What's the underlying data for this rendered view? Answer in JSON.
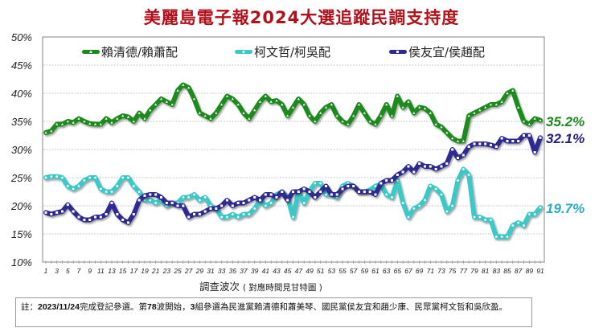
{
  "title": "美麗島電子報2024大選追蹤民調支持度",
  "legend": [
    {
      "label": "賴清德/賴蕭配",
      "color": "#1a8a1a",
      "marker": "triangle"
    },
    {
      "label": "柯文哲/柯吳配",
      "color": "#3cc8c8",
      "marker": "circle"
    },
    {
      "label": "侯友宜/侯趙配",
      "color": "#2e2a92",
      "marker": "square"
    }
  ],
  "x_axis_label": "調查波次",
  "x_axis_label_note": "( 對應時間見甘特圖 )",
  "note": {
    "prefix": "註：",
    "date": "2023/11/24",
    "text1": "完成登記參選。第",
    "wave": "78",
    "text2": "波開始，",
    "count": "3",
    "text3": "組參選為民進黨賴清德和蕭美琴、國民黨侯友宜和趙少康、民眾黨柯文哲和吳欣盈。"
  },
  "end_labels": [
    {
      "text": "35.2%",
      "color": "#1a8a1a"
    },
    {
      "text": "32.1%",
      "color": "#23207f"
    },
    {
      "text": "19.7%",
      "color": "#2aa9c9"
    }
  ],
  "chart_data": {
    "type": "line",
    "title": "美麗島電子報2024大選追蹤民調支持度",
    "xlabel": "調查波次 ( 對應時間見甘特圖 )",
    "ylabel": "",
    "ylim": [
      10,
      50
    ],
    "yticks": [
      "10%",
      "15%",
      "20%",
      "25%",
      "30%",
      "35%",
      "40%",
      "45%",
      "50%"
    ],
    "xticks": [
      "1",
      "3",
      "5",
      "7",
      "9",
      "11",
      "13",
      "15",
      "17",
      "19",
      "21",
      "23",
      "25",
      "27",
      "29",
      "31",
      "33",
      "35",
      "37",
      "39",
      "41",
      "43",
      "45",
      "47",
      "49",
      "51",
      "53",
      "55",
      "57",
      "59",
      "61",
      "63",
      "65",
      "67",
      "69",
      "71",
      "73",
      "75",
      "77",
      "79",
      "81",
      "83",
      "85",
      "87",
      "89",
      "91"
    ],
    "grid": true,
    "legend_position": "top",
    "x": [
      1,
      2,
      3,
      4,
      5,
      6,
      7,
      8,
      9,
      10,
      11,
      12,
      13,
      14,
      15,
      16,
      17,
      18,
      19,
      20,
      21,
      22,
      23,
      24,
      25,
      26,
      27,
      28,
      29,
      30,
      31,
      32,
      33,
      34,
      35,
      36,
      37,
      38,
      39,
      40,
      41,
      42,
      43,
      44,
      45,
      46,
      47,
      48,
      49,
      50,
      51,
      52,
      53,
      54,
      55,
      56,
      57,
      58,
      59,
      60,
      61,
      62,
      63,
      64,
      65,
      66,
      67,
      68,
      69,
      70,
      71,
      72,
      73,
      74,
      75,
      76,
      77,
      78,
      79,
      80,
      81,
      82,
      83,
      84,
      85,
      86,
      87,
      88,
      89,
      90,
      91
    ],
    "series": [
      {
        "name": "賴清德/賴蕭配",
        "color": "#1a8a1a",
        "final": 35.2,
        "values": [
          33.0,
          33.3,
          34.5,
          34.5,
          35.0,
          34.8,
          35.5,
          35.0,
          34.6,
          34.5,
          34.5,
          35.5,
          34.8,
          35.5,
          36.0,
          35.8,
          35.0,
          36.5,
          35.5,
          37.0,
          38.0,
          39.0,
          38.5,
          38.0,
          40.5,
          41.5,
          41.0,
          39.0,
          36.5,
          36.0,
          35.5,
          36.5,
          38.0,
          39.5,
          39.0,
          38.0,
          36.5,
          35.5,
          37.0,
          38.5,
          39.5,
          38.5,
          38.7,
          38.0,
          36.0,
          37.5,
          39.0,
          38.0,
          36.0,
          35.0,
          36.5,
          37.5,
          38.0,
          36.0,
          35.0,
          34.5,
          36.0,
          38.0,
          36.5,
          35.0,
          34.5,
          36.0,
          38.0,
          36.0,
          39.5,
          37.5,
          38.5,
          36.5,
          37.5,
          37.3,
          36.5,
          34.5,
          34.0,
          33.0,
          32.0,
          31.5,
          31.5,
          36.0,
          36.5,
          37.0,
          37.5,
          38.0,
          38.0,
          38.5,
          40.0,
          40.5,
          37.5,
          35.0,
          34.5,
          35.5,
          35.2
        ]
      },
      {
        "name": "柯文哲/柯吳配",
        "color": "#3cc8c8",
        "final": 19.7,
        "values": [
          25.0,
          25.2,
          25.2,
          25.0,
          23.5,
          23.0,
          23.5,
          24.5,
          25.0,
          25.0,
          23.0,
          22.5,
          22.5,
          23.5,
          25.0,
          25.0,
          23.5,
          22.5,
          21.0,
          21.0,
          20.5,
          21.0,
          20.0,
          20.5,
          20.5,
          21.5,
          21.5,
          22.0,
          21.0,
          21.5,
          20.0,
          19.5,
          18.0,
          18.0,
          18.5,
          18.0,
          18.5,
          18.5,
          19.5,
          21.0,
          20.0,
          20.5,
          22.0,
          22.5,
          21.5,
          18.0,
          22.5,
          20.5,
          22.5,
          24.0,
          24.0,
          22.0,
          22.0,
          21.5,
          23.5,
          24.0,
          23.5,
          22.5,
          22.5,
          22.8,
          23.5,
          23.8,
          22.0,
          21.5,
          24.5,
          20.5,
          18.0,
          19.5,
          20.0,
          21.0,
          23.5,
          23.0,
          22.0,
          19.0,
          20.0,
          24.5,
          26.5,
          25.5,
          18.0,
          18.0,
          17.5,
          17.5,
          14.5,
          14.5,
          14.5,
          16.5,
          17.0,
          16.5,
          18.5,
          18.5,
          19.7
        ]
      },
      {
        "name": "侯友宜/侯趙配",
        "color": "#2e2a92",
        "final": 32.1,
        "values": [
          18.8,
          18.5,
          18.8,
          19.0,
          20.2,
          19.0,
          18.0,
          17.5,
          17.5,
          18.0,
          18.0,
          18.5,
          20.5,
          18.5,
          17.5,
          17.0,
          18.5,
          21.0,
          21.8,
          22.0,
          22.0,
          21.5,
          20.5,
          20.5,
          20.0,
          20.0,
          18.0,
          18.5,
          18.5,
          19.0,
          19.5,
          19.5,
          20.0,
          21.0,
          20.0,
          20.5,
          20.5,
          21.0,
          21.5,
          21.0,
          22.0,
          22.0,
          21.5,
          22.5,
          21.0,
          22.5,
          22.5,
          23.0,
          22.5,
          21.5,
          22.5,
          23.5,
          22.0,
          22.0,
          23.0,
          23.5,
          23.5,
          22.5,
          22.5,
          22.5,
          22.0,
          24.0,
          24.5,
          24.5,
          25.5,
          26.0,
          27.0,
          26.0,
          27.5,
          27.0,
          27.0,
          26.5,
          27.0,
          27.5,
          30.0,
          28.5,
          29.0,
          30.5,
          31.0,
          31.0,
          31.0,
          30.8,
          30.5,
          32.0,
          31.5,
          31.5,
          31.5,
          32.5,
          32.5,
          29.5,
          32.1
        ]
      }
    ]
  }
}
